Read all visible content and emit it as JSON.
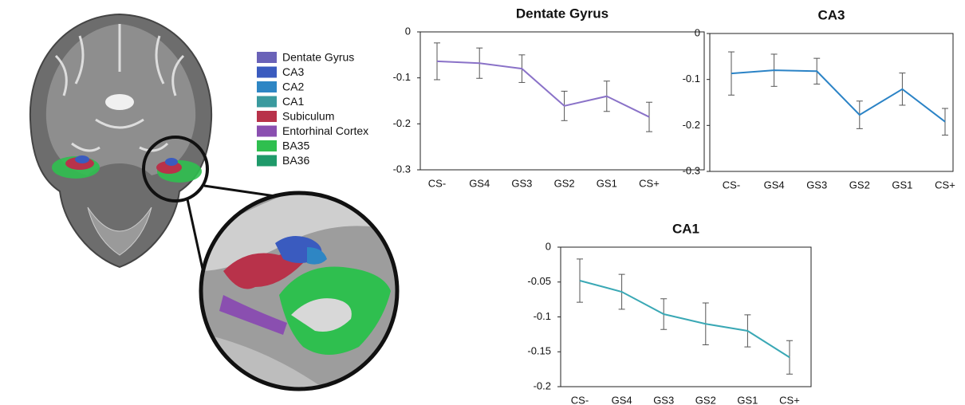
{
  "brain_legend": {
    "items": [
      {
        "label": "Dentate Gyrus",
        "color": "#6a62b8"
      },
      {
        "label": "CA3",
        "color": "#3a5bbf"
      },
      {
        "label": "CA2",
        "color": "#2e86c4"
      },
      {
        "label": "CA1",
        "color": "#3a9a9e"
      },
      {
        "label": "Subiculum",
        "color": "#b8324a"
      },
      {
        "label": "Entorhinal Cortex",
        "color": "#8a4fb0"
      },
      {
        "label": "BA35",
        "color": "#2fbf4f"
      },
      {
        "label": "BA36",
        "color": "#1f9a6a"
      }
    ]
  },
  "chart_data": [
    {
      "type": "line",
      "title": "Dentate Gyrus",
      "categories": [
        "CS-",
        "GS4",
        "GS3",
        "GS2",
        "GS1",
        "CS+"
      ],
      "series": [
        {
          "color": "#8a72c8",
          "values": [
            -0.064,
            -0.068,
            -0.08,
            -0.161,
            -0.14,
            -0.185
          ],
          "errors": [
            0.04,
            0.033,
            0.03,
            0.032,
            0.033,
            0.032
          ]
        }
      ],
      "ylim": [
        -0.3,
        0
      ],
      "yticks": [
        0,
        -0.1,
        -0.2,
        -0.3
      ]
    },
    {
      "type": "line",
      "title": "CA3",
      "categories": [
        "CS-",
        "GS4",
        "GS3",
        "GS2",
        "GS1",
        "CS+"
      ],
      "series": [
        {
          "color": "#2b83c6",
          "values": [
            -0.087,
            -0.08,
            -0.082,
            -0.177,
            -0.121,
            -0.192
          ],
          "errors": [
            0.047,
            0.035,
            0.028,
            0.03,
            0.035,
            0.029
          ]
        }
      ],
      "ylim": [
        -0.3,
        0
      ],
      "yticks": [
        0,
        -0.1,
        -0.2,
        -0.3
      ]
    },
    {
      "type": "line",
      "title": "CA1",
      "categories": [
        "CS-",
        "GS4",
        "GS3",
        "GS2",
        "GS1",
        "CS+"
      ],
      "series": [
        {
          "color": "#3aa8b5",
          "values": [
            -0.048,
            -0.064,
            -0.096,
            -0.11,
            -0.12,
            -0.158
          ],
          "errors": [
            0.031,
            0.025,
            0.022,
            0.03,
            0.023,
            0.024
          ]
        }
      ],
      "ylim": [
        -0.2,
        0
      ],
      "yticks": [
        0,
        -0.05,
        -0.1,
        -0.15,
        -0.2
      ]
    }
  ]
}
